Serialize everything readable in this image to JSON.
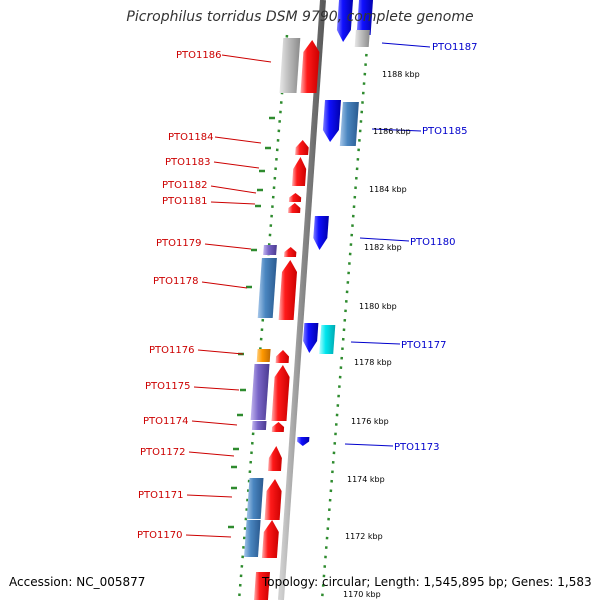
{
  "title": "Picrophilus torridus DSM 9790, complete genome",
  "accession": "Accession: NC_005877",
  "topology": "Topology: circular; Length: 1,545,895 bp; Genes: 1,583",
  "colors": {
    "forward": "#ff0000",
    "reverse": "#0000ff",
    "gray": "#b0b0b0",
    "steel": "#4a86c0",
    "purple": "#7a66c8",
    "cyan": "#00e6ee",
    "orange": "#ff9900",
    "dots": "#2e8b2e",
    "left_label": "#cc0000",
    "right_label": "#0000cc"
  },
  "left_labels": [
    {
      "text": "PTO1186"
    },
    {
      "text": "PTO1184"
    },
    {
      "text": "PTO1183"
    },
    {
      "text": "PTO1182"
    },
    {
      "text": "PTO1181"
    },
    {
      "text": "PTO1179"
    },
    {
      "text": "PTO1178"
    },
    {
      "text": "PTO1176"
    },
    {
      "text": "PTO1175"
    },
    {
      "text": "PTO1174"
    },
    {
      "text": "PTO1172"
    },
    {
      "text": "PTO1171"
    },
    {
      "text": "PTO1170"
    }
  ],
  "right_labels": [
    {
      "text": "PTO1187"
    },
    {
      "text": "PTO1185"
    },
    {
      "text": "PTO1180"
    },
    {
      "text": "PTO1177"
    },
    {
      "text": "PTO1173"
    }
  ],
  "ticks": [
    "1188 kbp",
    "1186 kbp",
    "1184 kbp",
    "1182 kbp",
    "1180 kbp",
    "1178 kbp",
    "1176 kbp",
    "1174 kbp",
    "1172 kbp",
    "1170 kbp"
  ]
}
